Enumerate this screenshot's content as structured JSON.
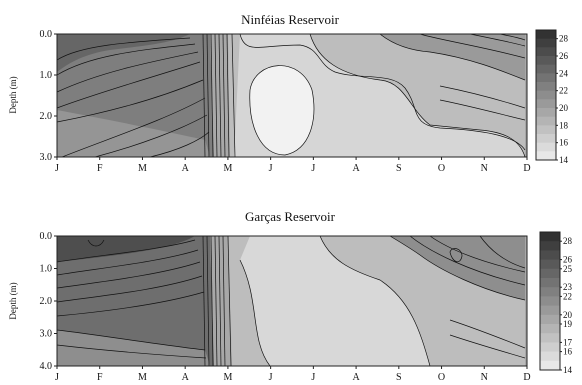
{
  "chart_data": [
    {
      "type": "heatmap",
      "title": "Ninféias Reservoir",
      "ylabel": "Depth (m)",
      "xlabel": "",
      "x_ticks": [
        "J",
        "F",
        "M",
        "A",
        "M",
        "J",
        "J",
        "A",
        "S",
        "O",
        "N",
        "D"
      ],
      "y_ticks": [
        "0.0",
        "1.0",
        "2.0",
        "3.0"
      ],
      "ylim": [
        0,
        3.0
      ],
      "y_inverted": true,
      "colorbar": {
        "levels": [
          28,
          26,
          24,
          22,
          20,
          18,
          16,
          14
        ],
        "min": 14,
        "max": 29
      },
      "grid": false
    },
    {
      "type": "heatmap",
      "title": "Garças Reservoir",
      "ylabel": "Depth (m)",
      "xlabel": "",
      "x_ticks": [
        "J",
        "F",
        "M",
        "A",
        "M",
        "J",
        "J",
        "A",
        "S",
        "O",
        "N",
        "D"
      ],
      "y_ticks": [
        "0.0",
        "1.0",
        "2.0",
        "3.0",
        "4.0"
      ],
      "ylim": [
        0,
        4.0
      ],
      "y_inverted": true,
      "colorbar": {
        "levels": [
          28,
          26,
          25,
          23,
          22,
          20,
          19,
          17,
          16,
          14
        ],
        "min": 14,
        "max": 29
      },
      "grid": false
    }
  ]
}
